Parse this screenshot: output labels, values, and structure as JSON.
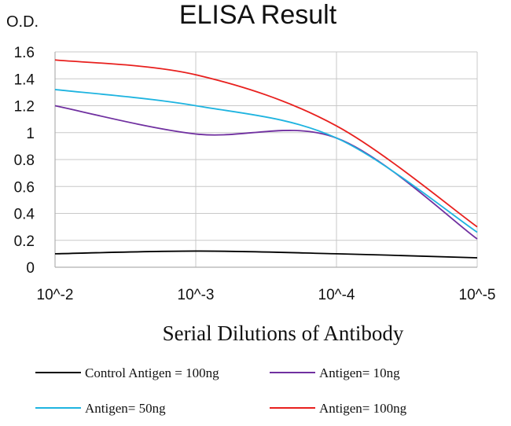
{
  "chart_data": {
    "type": "line",
    "title": "ELISA Result",
    "ylabel": "O.D.",
    "xlabel": "Serial Dilutions  of Antibody",
    "categories": [
      "10^-2",
      "10^-3",
      "10^-4",
      "10^-5"
    ],
    "yticks": [
      "0",
      "0.2",
      "0.4",
      "0.6",
      "0.8",
      "1",
      "1.2",
      "1.4",
      "1.6"
    ],
    "ylim": [
      0,
      1.6
    ],
    "grid": "vertical and horizontal",
    "legend_position": "bottom",
    "series": [
      {
        "name": "Control Antigen = 100ng",
        "color": "#000000",
        "values": [
          0.1,
          0.12,
          0.1,
          0.07
        ]
      },
      {
        "name": "Antigen= 10ng",
        "color": "#7030A0",
        "values": [
          1.2,
          0.99,
          0.96,
          0.21
        ]
      },
      {
        "name": "Antigen= 50ng",
        "color": "#1FB4E0",
        "values": [
          1.32,
          1.2,
          0.96,
          0.26
        ]
      },
      {
        "name": "Antigen= 100ng",
        "color": "#E8201E",
        "values": [
          1.54,
          1.43,
          1.05,
          0.3
        ]
      }
    ]
  }
}
